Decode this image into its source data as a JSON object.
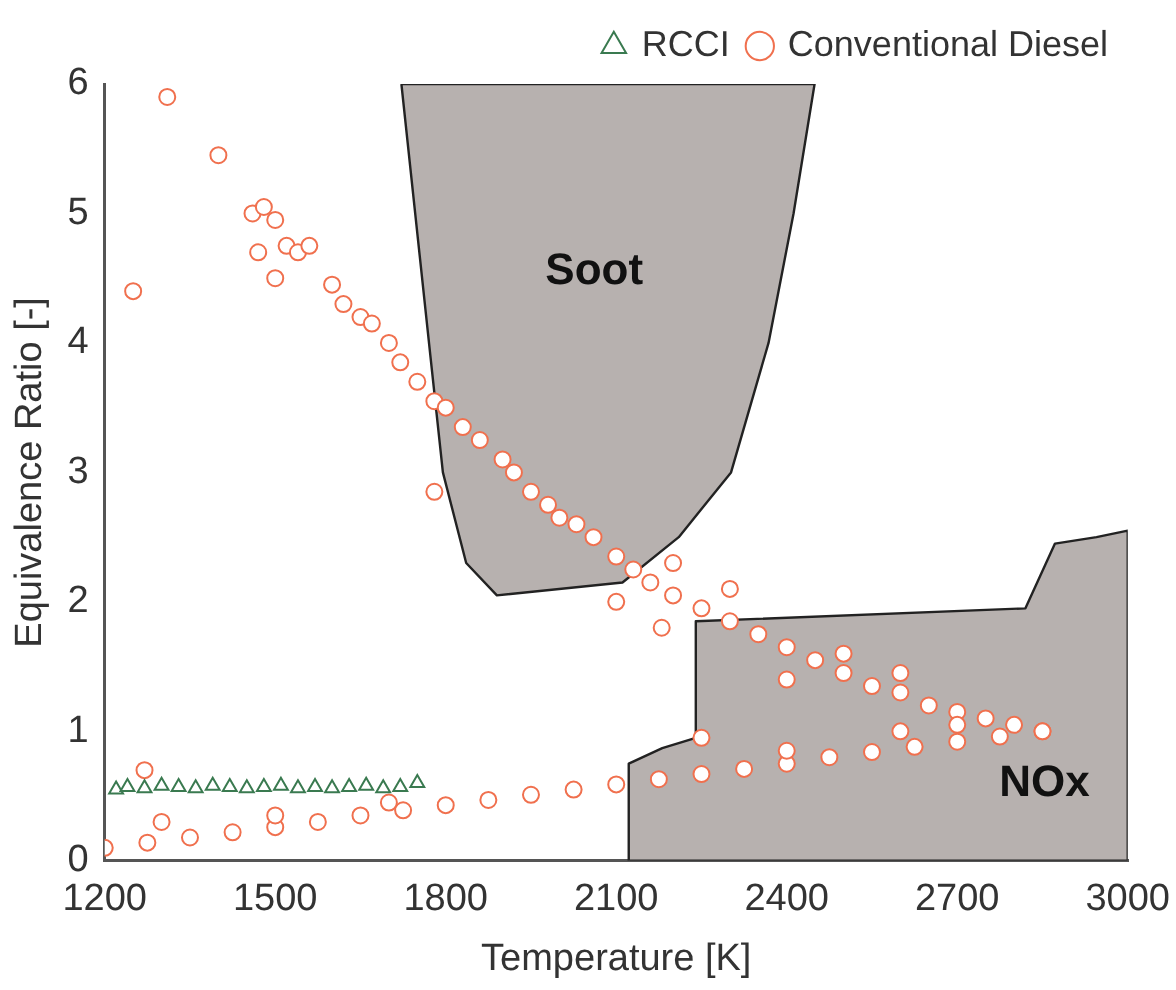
{
  "chart_data": {
    "type": "scatter",
    "xlabel": "Temperature [K]",
    "ylabel": "Equivalence Ratio [-]",
    "xlim": [
      1200,
      3000
    ],
    "xticks": [
      1200,
      1500,
      1800,
      2100,
      2400,
      2700,
      3000
    ],
    "ylim": [
      0,
      6
    ],
    "yticks": [
      0,
      1,
      2,
      3,
      4,
      5,
      6
    ],
    "grid": false,
    "legend": "top right",
    "series": [
      {
        "type": "area",
        "name": "Soot",
        "color": "#b7b1af",
        "x": [
          1722,
          1773,
          1795,
          1836,
          1890,
          2111,
          2210,
          2302,
          2368,
          2412,
          2449,
          1722
        ],
        "values": [
          6,
          3.9,
          3,
          2.3,
          2.05,
          2.15,
          2.5,
          3,
          4,
          5,
          6,
          6
        ]
      },
      {
        "type": "area",
        "name": "NOx",
        "color": "#b7b1af",
        "x": [
          2122,
          2122,
          2181,
          2240,
          2240,
          2820,
          2872,
          2945,
          3000,
          3000,
          2122
        ],
        "values": [
          0,
          0.75,
          0.87,
          0.95,
          1.85,
          1.95,
          2.45,
          2.5,
          2.55,
          0,
          0
        ]
      },
      {
        "name": "RCCI",
        "color": "#3a7a50",
        "marker": "triangle",
        "x": [
          1220,
          1240,
          1270,
          1300,
          1330,
          1360,
          1390,
          1420,
          1450,
          1480,
          1510,
          1540,
          1570,
          1600,
          1630,
          1660,
          1690,
          1720,
          1750
        ],
        "values": [
          0.55,
          0.57,
          0.56,
          0.58,
          0.57,
          0.56,
          0.58,
          0.57,
          0.56,
          0.57,
          0.58,
          0.56,
          0.57,
          0.56,
          0.57,
          0.58,
          0.56,
          0.57,
          0.6
        ]
      },
      {
        "name": "Conventional Diesel",
        "color": "#f0704e",
        "marker": "circle",
        "x": [
          1310,
          1250,
          1400,
          1780,
          2180,
          2250,
          1270,
          1460,
          1480,
          1500,
          1470,
          1520,
          1540,
          1560,
          1500,
          1600,
          1620,
          1650,
          1670,
          1700,
          1720,
          1750,
          1780,
          1800,
          1830,
          1860,
          1900,
          1920,
          1950,
          1980,
          2000,
          2030,
          2060,
          2100,
          2130,
          2160,
          2200,
          2250,
          2300,
          2350,
          2400,
          2450,
          2500,
          2550,
          2600,
          2650,
          2700,
          2750,
          2800,
          2850,
          2100,
          2400,
          2500,
          2600,
          2200,
          2300,
          1200,
          1275,
          1350,
          1425,
          1500,
          1575,
          1650,
          1725,
          1800,
          1875,
          1950,
          2025,
          2100,
          2175,
          2250,
          2325,
          2400,
          2475,
          2550,
          2625,
          2700,
          2775,
          2850,
          1300,
          1500,
          1700,
          2400,
          2600,
          2700
        ],
        "values": [
          5.9,
          4.4,
          5.45,
          2.85,
          1.8,
          0.95,
          0.7,
          5.0,
          5.05,
          4.95,
          4.7,
          4.75,
          4.7,
          4.75,
          4.5,
          4.45,
          4.3,
          4.2,
          4.15,
          4.0,
          3.85,
          3.7,
          3.55,
          3.5,
          3.35,
          3.25,
          3.1,
          3.0,
          2.85,
          2.75,
          2.65,
          2.6,
          2.5,
          2.35,
          2.25,
          2.15,
          2.05,
          1.95,
          1.85,
          1.75,
          1.65,
          1.55,
          1.45,
          1.35,
          1.3,
          1.2,
          1.15,
          1.1,
          1.05,
          1.0,
          2.0,
          1.4,
          1.6,
          1.45,
          2.3,
          2.1,
          0.1,
          0.14,
          0.18,
          0.22,
          0.26,
          0.3,
          0.35,
          0.39,
          0.43,
          0.47,
          0.51,
          0.55,
          0.59,
          0.63,
          0.67,
          0.71,
          0.75,
          0.8,
          0.84,
          0.88,
          0.92,
          0.96,
          1.0,
          0.3,
          0.35,
          0.45,
          0.85,
          1.0,
          1.05
        ]
      }
    ]
  }
}
